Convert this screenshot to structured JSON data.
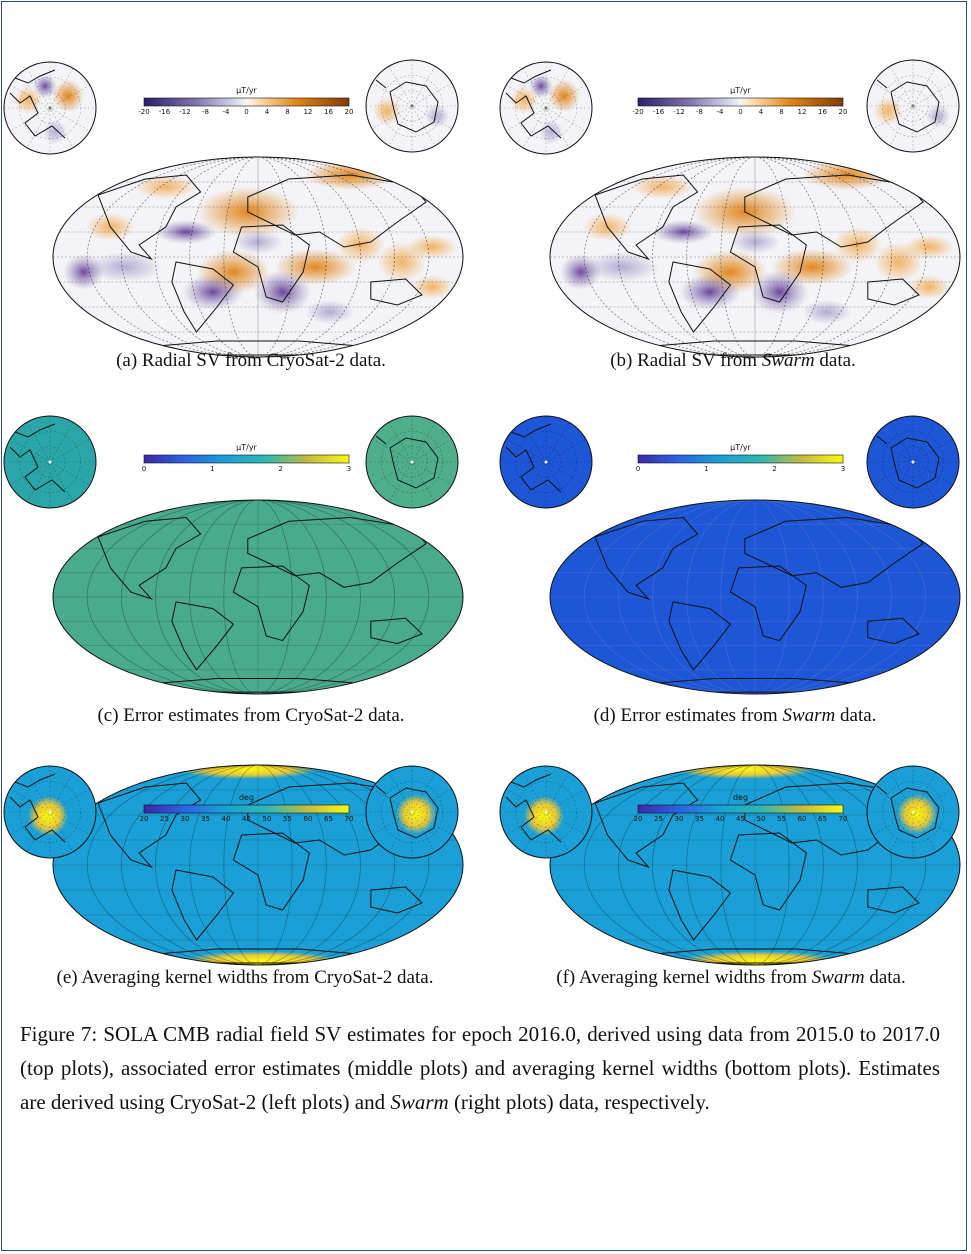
{
  "panels": [
    {
      "id": "a",
      "caption_prefix": "(a) Radial SV from ",
      "caption_source": "CryoSat-2",
      "caption_source_italic": false,
      "caption_suffix": " data.",
      "colorbar": {
        "title": "μT/yr",
        "ticks": [
          "-20",
          "-16",
          "-12",
          "-8",
          "-4",
          "0",
          "4",
          "8",
          "12",
          "16",
          "20"
        ],
        "scheme": "diverging"
      }
    },
    {
      "id": "b",
      "caption_prefix": "(b) Radial SV from ",
      "caption_source": "Swarm",
      "caption_source_italic": true,
      "caption_suffix": " data.",
      "colorbar": {
        "title": "μT/yr",
        "ticks": [
          "-20",
          "-16",
          "-12",
          "-8",
          "-4",
          "0",
          "4",
          "8",
          "12",
          "16",
          "20"
        ],
        "scheme": "diverging"
      }
    },
    {
      "id": "c",
      "caption_prefix": "(c) Error estimates from ",
      "caption_source": "CryoSat-2",
      "caption_source_italic": false,
      "caption_suffix": " data.",
      "colorbar": {
        "title": "μT/yr",
        "ticks": [
          "0",
          "1",
          "2",
          "3"
        ],
        "scheme": "sequential"
      }
    },
    {
      "id": "d",
      "caption_prefix": "(d) Error estimates from ",
      "caption_source": "Swarm",
      "caption_source_italic": true,
      "caption_suffix": " data.",
      "colorbar": {
        "title": "μT/yr",
        "ticks": [
          "0",
          "1",
          "2",
          "3"
        ],
        "scheme": "sequential"
      }
    },
    {
      "id": "e",
      "caption_prefix": "(e) Averaging kernel widths from ",
      "caption_source": "CryoSat-2",
      "caption_source_italic": false,
      "caption_suffix": " data.",
      "colorbar": {
        "title": "deg",
        "ticks": [
          "20",
          "25",
          "30",
          "35",
          "40",
          "45",
          "50",
          "55",
          "60",
          "65",
          "70"
        ],
        "scheme": "sequential"
      }
    },
    {
      "id": "f",
      "caption_prefix": "(f) Averaging kernel widths from ",
      "caption_source": "Swarm",
      "caption_source_italic": true,
      "caption_suffix": " data.",
      "colorbar": {
        "title": "deg",
        "ticks": [
          "20",
          "25",
          "30",
          "35",
          "40",
          "45",
          "50",
          "55",
          "60",
          "65",
          "70"
        ],
        "scheme": "sequential"
      }
    }
  ],
  "figure_caption": {
    "part1": "Figure 7: SOLA CMB radial field SV estimates for epoch 2016.0, derived using data from 2015.0 to 2017.0 (top plots), associated error estimates (middle plots) and averaging kernel widths (bottom plots). Estimates are derived using CryoSat-2 (left plots) and ",
    "italic": "Swarm",
    "part2": " (right plots) data, respectively."
  },
  "colors": {
    "diverging_neg": "#2d1e6b",
    "diverging_mid": "#f7f7f7",
    "diverging_pos": "#b35806",
    "viridis_low": "#3e26a8",
    "viridis_mid": "#2fb8b0",
    "viridis_high": "#f9fb0e",
    "map_c_fill": "#49aa8e",
    "map_d_fill": "#1d56d6",
    "map_ef_fill": "#1aa0d6",
    "frame_border": "#2d4e74"
  }
}
